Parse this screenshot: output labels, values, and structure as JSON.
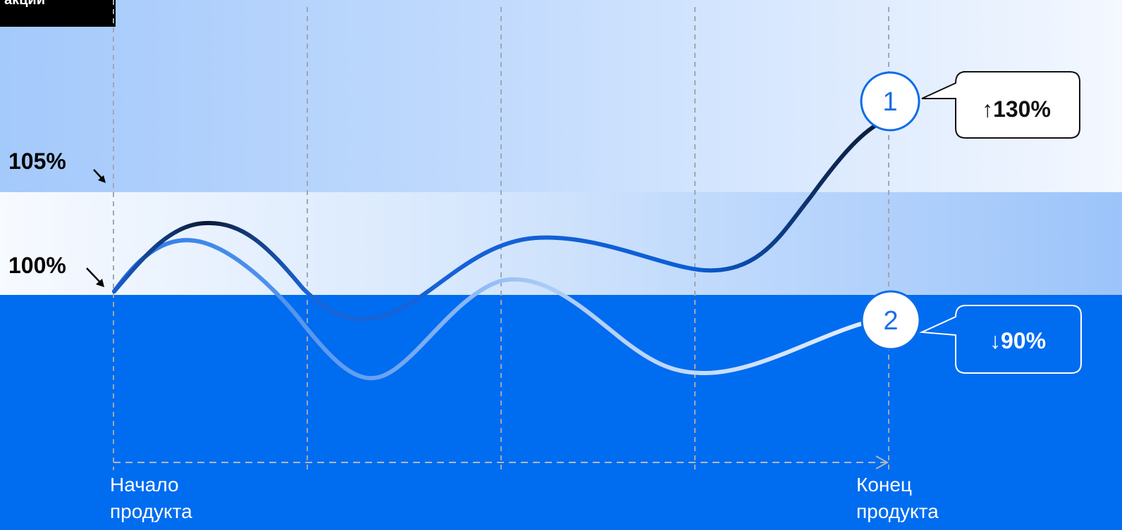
{
  "badge": {
    "text": "акции"
  },
  "levels": {
    "upper": "105%",
    "baseline": "100%"
  },
  "x_axis": {
    "start_label_line1": "Начало",
    "start_label_line2": "продукта",
    "end_label_line1": "Конец",
    "end_label_line2": "продукта"
  },
  "markers": [
    {
      "number": "1",
      "callout": "↑130%"
    },
    {
      "number": "2",
      "callout": "↓90%"
    }
  ],
  "colors": {
    "accent_blue": "#006cf0",
    "band_light": "#a6cbfb",
    "line_dark": "#0b1a33",
    "line_light": "#e9f2ff"
  }
}
